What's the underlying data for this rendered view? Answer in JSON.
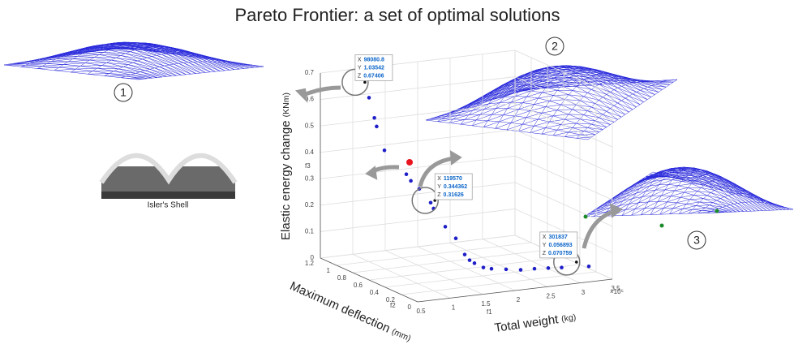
{
  "chart_data": {
    "type": "scatter3d",
    "title": "Pareto Frontier: a set of optimal solutions",
    "xlabel": "Total weight",
    "xlabel_unit": "(kg)",
    "xname": "f1",
    "x_exponent_label": "×10⁵",
    "ylabel": "Maximum deflection",
    "ylabel_unit": "(mm)",
    "yname": "f2",
    "zlabel": "Elastic energy change",
    "zlabel_unit": "(KNm)",
    "zname": "f3",
    "xlim": [
      50000,
      350000
    ],
    "xticks": [
      {
        "value": 50000,
        "label": "0.5"
      },
      {
        "value": 100000,
        "label": "1"
      },
      {
        "value": 150000,
        "label": "1.5"
      },
      {
        "value": 200000,
        "label": "2"
      },
      {
        "value": 250000,
        "label": "2.5"
      },
      {
        "value": 300000,
        "label": "3"
      },
      {
        "value": 350000,
        "label": "3.5"
      }
    ],
    "ylim": [
      0,
      1.2
    ],
    "yticks": [
      0,
      0.2,
      0.4,
      0.6,
      0.8,
      1,
      1.2
    ],
    "zlim": [
      0,
      0.7
    ],
    "zticks": [
      0,
      0.1,
      0.2,
      0.3,
      0.4,
      0.5,
      0.6,
      0.7
    ],
    "grid": true,
    "series": [
      {
        "color": "#1f1fc8",
        "x": [
          100000,
          102000,
          103000,
          105000,
          110000,
          112000,
          115000,
          120000,
          122000,
          130000,
          140000,
          150000,
          155000,
          160000,
          170000,
          180000,
          200000,
          220000,
          240000,
          260000,
          280000,
          320000
        ],
        "y": [
          1.0,
          0.95,
          0.93,
          0.85,
          0.62,
          0.58,
          0.5,
          0.4,
          0.38,
          0.3,
          0.25,
          0.22,
          0.2,
          0.18,
          0.15,
          0.13,
          0.11,
          0.09,
          0.08,
          0.07,
          0.065,
          0.05
        ],
        "z": [
          0.62,
          0.55,
          0.52,
          0.44,
          0.38,
          0.36,
          0.34,
          0.3,
          0.28,
          0.22,
          0.18,
          0.12,
          0.1,
          0.09,
          0.075,
          0.07,
          0.065,
          0.06,
          0.06,
          0.058,
          0.055,
          0.05
        ]
      },
      {
        "color": "#e8141e",
        "x": [
          125000
        ],
        "y": [
          0.7
        ],
        "z": [
          0.41
        ]
      }
    ],
    "datatip_keys": [
      "X",
      "Y",
      "Z"
    ],
    "datatips": [
      {
        "x": 98080.8,
        "y": 1.03542,
        "z": 0.67406
      },
      {
        "x": 119570,
        "y": 0.344362,
        "z": 0.31626
      },
      {
        "x": 301837,
        "y": 0.056893,
        "z": 0.070759
      }
    ],
    "annotations": {
      "solution_1": "1",
      "solution_2": "2",
      "solution_3": "3",
      "photo_caption": "Isler's Shell"
    }
  }
}
